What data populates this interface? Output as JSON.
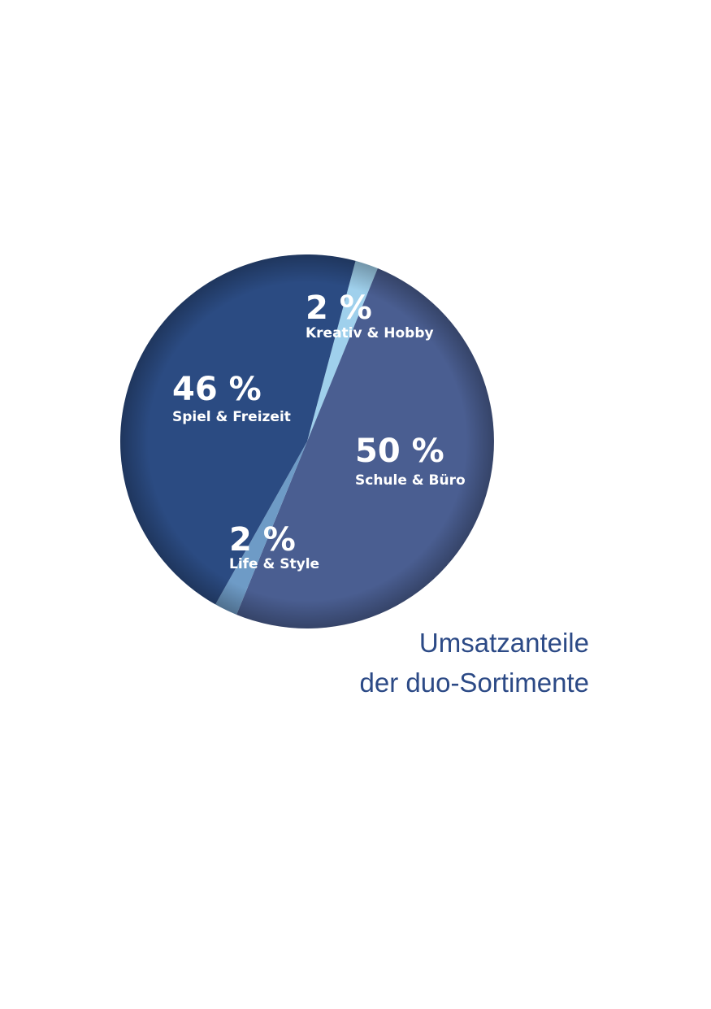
{
  "chart_data": {
    "type": "pie",
    "title": [
      "Umsatzanteile",
      "der duo-Sortimente"
    ],
    "categories": [
      "Kreativ & Hobby",
      "Schule & Büro",
      "Life & Style",
      "Spiel & Freizeit"
    ],
    "values": [
      2,
      50,
      2,
      46
    ],
    "value_labels": [
      "2 %",
      "50 %",
      "2 %",
      "46 %"
    ],
    "colors": [
      "#9fd0ec",
      "#4a5e91",
      "#6e9bc6",
      "#2b4b82"
    ],
    "title_color": "#2c4a86"
  }
}
